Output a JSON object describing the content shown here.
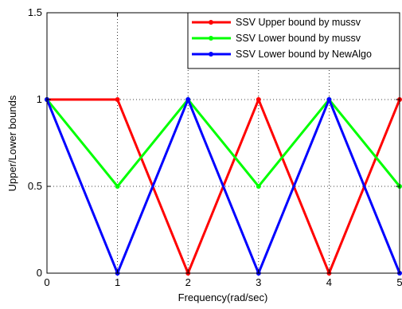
{
  "chart_data": {
    "type": "line",
    "title": "",
    "xlabel": "Frequency(rad/sec)",
    "ylabel": "Upper/Lower bounds",
    "xlim": [
      0,
      5
    ],
    "ylim": [
      0,
      1.5
    ],
    "xticks": [
      0,
      1,
      2,
      3,
      4,
      5
    ],
    "xtick_labels": [
      "0",
      "1",
      "2",
      "3",
      "4",
      "5"
    ],
    "yticks": [
      0,
      0.5,
      1,
      1.5
    ],
    "ytick_labels": [
      "0",
      "0.5",
      "1",
      "1.5"
    ],
    "grid": true,
    "legend_position": "top-right",
    "x": [
      0,
      1,
      2,
      3,
      4,
      5
    ],
    "series": [
      {
        "name": "SSV Upper bound by mussv",
        "color": "#ff0000",
        "marker": "dot",
        "values": [
          1,
          1,
          0,
          1,
          0,
          1
        ]
      },
      {
        "name": "SSV Lower bound by mussv",
        "color": "#00ff00",
        "marker": "dot",
        "values": [
          1,
          0.5,
          1,
          0.5,
          1,
          0.5
        ]
      },
      {
        "name": "SSV Lower bound by NewAlgo",
        "color": "#0000ff",
        "marker": "dot",
        "values": [
          1,
          0,
          1,
          0,
          1,
          0
        ]
      }
    ]
  }
}
